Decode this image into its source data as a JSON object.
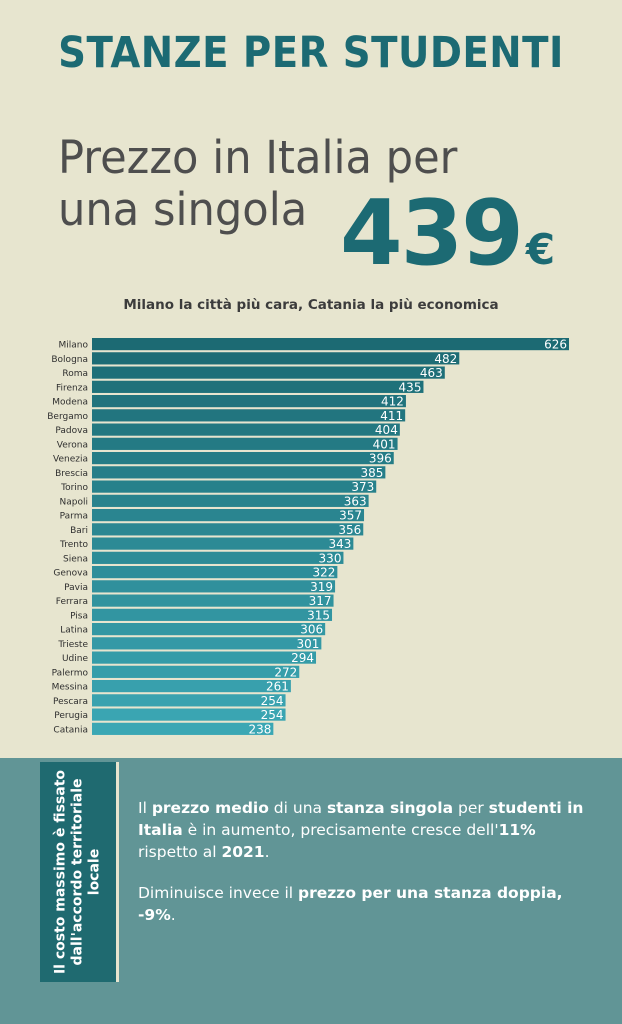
{
  "title": "STANZE PER STUDENTI",
  "headline": {
    "line1": "Prezzo in Italia per",
    "line2": "una singola",
    "value": "439",
    "currency": "€"
  },
  "subtitle": "Milano la città più cara, Catania la più economica",
  "colors": {
    "dark_teal": "#1c6a73",
    "light_teal": "#3ba7b4",
    "background": "#e7e5cf",
    "panel": "#619596"
  },
  "chart_data": {
    "type": "bar",
    "orientation": "horizontal",
    "categories": [
      "Milano",
      "Bologna",
      "Roma",
      "Firenza",
      "Modena",
      "Bergamo",
      "Padova",
      "Verona",
      "Venezia",
      "Brescia",
      "Torino",
      "Napoli",
      "Parma",
      "Bari",
      "Trento",
      "Siena",
      "Genova",
      "Pavia",
      "Ferrara",
      "Pisa",
      "Latina",
      "Trieste",
      "Udine",
      "Palermo",
      "Messina",
      "Pescara",
      "Perugia",
      "Catania"
    ],
    "values": [
      626,
      482,
      463,
      435,
      412,
      411,
      404,
      401,
      396,
      385,
      373,
      363,
      357,
      356,
      343,
      330,
      322,
      319,
      317,
      315,
      306,
      301,
      294,
      272,
      261,
      254,
      254,
      238
    ],
    "value_labels": [
      "626",
      "482",
      "463",
      "435",
      "412",
      "411",
      "404",
      "401",
      "396",
      "385",
      "373",
      "363",
      "357",
      "356",
      "343",
      "330",
      "322",
      "319",
      "317",
      "315",
      "306",
      "301",
      "294",
      "272",
      "261",
      "254",
      "254",
      "238"
    ],
    "xlim": [
      0,
      626
    ],
    "grid": false,
    "legend": "none"
  },
  "side_note": "Il costo massimo è fissato dall'accordo territoriale locale",
  "info": {
    "p1": {
      "t1": "Il ",
      "b1": "prezzo medio",
      "t2": " di una ",
      "b2": "stanza singola",
      "t3": " per ",
      "b3": "studenti in Italia",
      "t4": " è in aumento, precisamente cresce dell'",
      "b4": "11%",
      "t5": " rispetto al ",
      "b5": "2021",
      "t6": "."
    },
    "p2": {
      "t1": "Diminuisce invece il ",
      "b1": "prezzo per una stanza doppia, -9%",
      "t2": "."
    }
  }
}
